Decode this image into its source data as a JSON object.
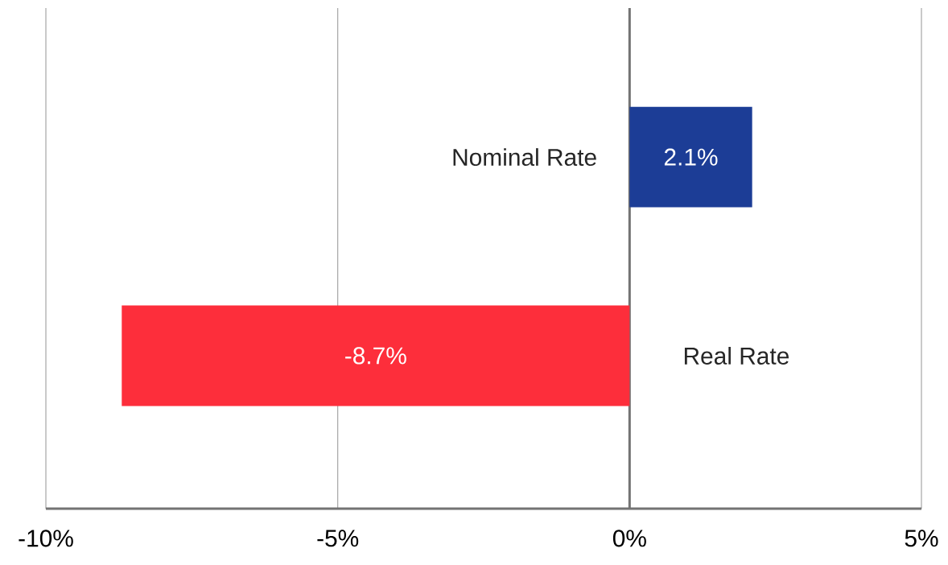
{
  "chart_data": {
    "type": "bar",
    "orientation": "horizontal",
    "categories": [
      "Nominal Rate",
      "Real Rate"
    ],
    "values": [
      2.1,
      -8.7
    ],
    "colors": [
      "#1c3d96",
      "#fd2e3b"
    ],
    "value_labels": [
      "2.1%",
      "-8.7%"
    ],
    "xlim": [
      -10,
      5
    ],
    "xticks": [
      {
        "value": -10,
        "label": "-10%"
      },
      {
        "value": -5,
        "label": "-5%"
      },
      {
        "value": 0,
        "label": "0%"
      },
      {
        "value": 5,
        "label": "5%"
      }
    ],
    "grid": "x"
  }
}
